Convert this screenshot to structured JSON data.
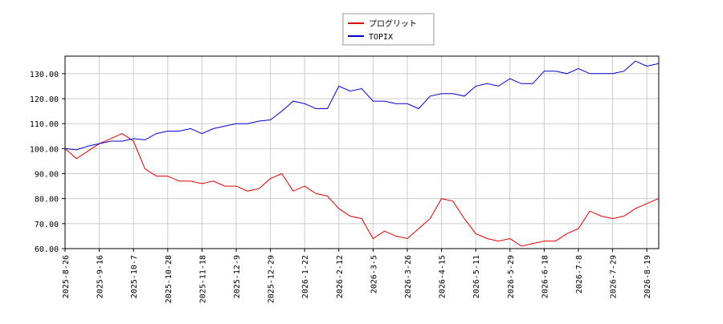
{
  "chart_data": {
    "type": "line",
    "categories": [
      "2025-8-26",
      null,
      null,
      "2025-9-16",
      null,
      null,
      "2025-10-7",
      null,
      null,
      "2025-10-28",
      null,
      null,
      "2025-11-18",
      null,
      null,
      "2025-12-9",
      null,
      null,
      "2025-12-29",
      null,
      null,
      "2026-1-22",
      null,
      null,
      "2026-2-12",
      null,
      null,
      "2026-3-5",
      null,
      null,
      "2026-3-26",
      null,
      null,
      "2026-4-15",
      null,
      null,
      "2026-5-11",
      null,
      null,
      "2026-5-29",
      null,
      null,
      "2026-6-18",
      null,
      null,
      "2026-7-8",
      null,
      null,
      "2026-7-29",
      null,
      null,
      "2026-8-19",
      null
    ],
    "series": [
      {
        "name": "プログリット",
        "color": "#dd0000",
        "values": [
          100,
          96,
          99,
          102,
          104,
          106,
          103,
          92,
          89,
          89,
          87,
          87,
          86,
          87,
          85,
          85,
          83,
          84,
          88,
          90,
          83,
          85,
          82,
          81,
          76,
          73,
          72,
          64,
          67,
          65,
          64,
          68,
          72,
          80,
          79,
          72,
          66,
          64,
          63,
          64,
          61,
          62,
          63,
          63,
          66,
          68,
          75,
          73,
          72,
          73,
          76,
          78,
          80
        ]
      },
      {
        "name": "TOPIX",
        "color": "#0000cc",
        "values": [
          100,
          99.5,
          101,
          102,
          103,
          103,
          104,
          103.5,
          106,
          107,
          107,
          108,
          106,
          108,
          109,
          110,
          110,
          111,
          111.5,
          115,
          119,
          118,
          116,
          116,
          125,
          123,
          124,
          119,
          119,
          118,
          118,
          116,
          121,
          122,
          122,
          121,
          125,
          126,
          125,
          128,
          126,
          126,
          131,
          131,
          130,
          132,
          130,
          130,
          130,
          131,
          135,
          133,
          134
        ]
      }
    ],
    "ylim": [
      60,
      137
    ],
    "yticks": [
      {
        "value": 60,
        "label": "60.00"
      },
      {
        "value": 70,
        "label": "70.00"
      },
      {
        "value": 80,
        "label": "80.00"
      },
      {
        "value": 90,
        "label": "90.00"
      },
      {
        "value": 100,
        "label": "100.00"
      },
      {
        "value": 110,
        "label": "110.00"
      },
      {
        "value": 120,
        "label": "120.00"
      },
      {
        "value": 130,
        "label": "130.00"
      }
    ],
    "grid": true
  }
}
